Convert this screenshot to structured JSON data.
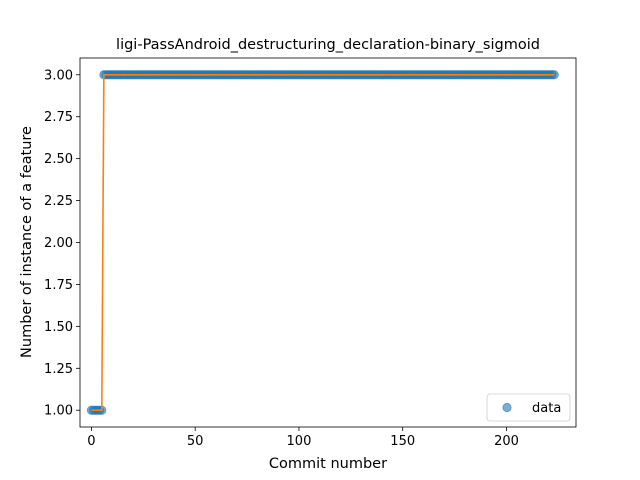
{
  "chart_data": {
    "type": "scatter",
    "title": "ligi-PassAndroid_destructuring_declaration-binary_sigmoid",
    "xlabel": "Commit number",
    "ylabel": "Number of instance of a feature",
    "xlim": [
      -5.5,
      233.5
    ],
    "ylim": [
      0.9,
      3.1
    ],
    "x_ticks": [
      0,
      50,
      100,
      150,
      200
    ],
    "x_tick_labels": [
      "0",
      "50",
      "100",
      "150",
      "200"
    ],
    "y_ticks": [
      1.0,
      1.25,
      1.5,
      1.75,
      2.0,
      2.25,
      2.5,
      2.75,
      3.0
    ],
    "y_tick_labels": [
      "1.00",
      "1.25",
      "1.50",
      "1.75",
      "2.00",
      "2.25",
      "2.50",
      "2.75",
      "3.00"
    ],
    "grid": false,
    "legend": {
      "position": "lower-right",
      "entries": [
        "data"
      ]
    },
    "series": [
      {
        "name": "data",
        "kind": "scatter",
        "color": "#1f77b4",
        "points": [
          {
            "x_from": 0,
            "x_to": 5,
            "y": 1.0
          },
          {
            "x_from": 6,
            "x_to": 223,
            "y": 3.0
          }
        ]
      },
      {
        "kind": "line",
        "color": "#ff7f0e",
        "x": [
          0,
          5,
          6,
          223
        ],
        "y": [
          1.0,
          1.0,
          3.0,
          3.0
        ]
      }
    ]
  }
}
